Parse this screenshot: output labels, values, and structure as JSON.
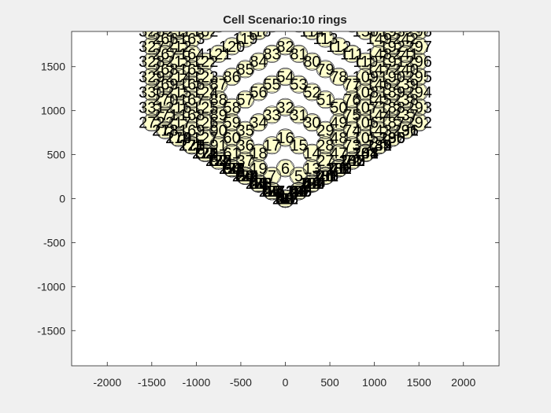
{
  "colors": {
    "figure_background": "#f0f0f0",
    "axes_background": "#ffffff",
    "cell_fill": "#ffffcc",
    "cell_edge": "#000000",
    "circle_edge": "#3c3c3c",
    "axis_color": "#262626"
  },
  "chart_data": {
    "type": "scatter",
    "title": "Cell Scenario:10 rings",
    "xlabel": "",
    "ylabel": "",
    "xlim": [
      -2400,
      2400
    ],
    "ylim": [
      -1900,
      1900
    ],
    "xticks": [
      -2000,
      -1500,
      -1000,
      -500,
      0,
      500,
      1000,
      1500,
      2000
    ],
    "yticks": [
      -1500,
      -1000,
      -500,
      0,
      500,
      1000,
      1500
    ],
    "grid": false,
    "legend": "none",
    "cells": {
      "rings": 10,
      "cell_radius": 100,
      "shape": "hexagon",
      "center_circle_radius": 100,
      "labeling": "cell index, 1 at center, numbered ring by ring",
      "total_cells": 331
    }
  }
}
